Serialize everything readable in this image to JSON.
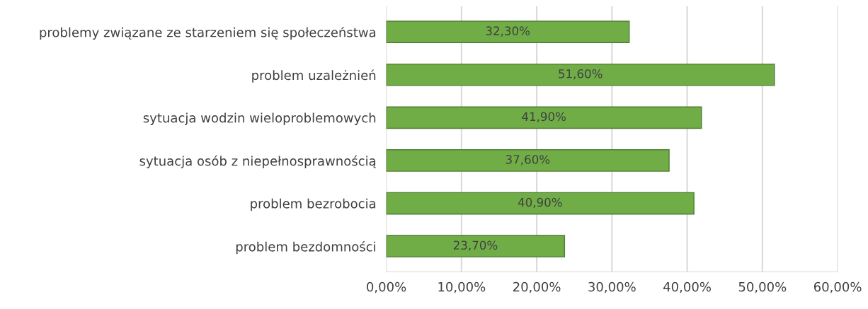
{
  "chart_data": {
    "type": "bar",
    "orientation": "horizontal",
    "categories": [
      "problemy związane ze starzeniem się społeczeństwa",
      "problem uzależnień",
      "sytuacja wodzin wieloproblemowych",
      "sytuacja osób z niepełnosprawnością",
      "problem bezrobocia",
      "problem bezdomności"
    ],
    "values": [
      32.3,
      51.6,
      41.9,
      37.6,
      40.9,
      23.7
    ],
    "value_labels": [
      "32,30%",
      "51,60%",
      "41,90%",
      "37,60%",
      "40,90%",
      "23,70%"
    ],
    "color": "#70ad47",
    "xlim": [
      0,
      60
    ],
    "xticks": [
      {
        "value": 0,
        "label": "0,00%"
      },
      {
        "value": 10,
        "label": "10,00%"
      },
      {
        "value": 20,
        "label": "20,00%"
      },
      {
        "value": 30,
        "label": "30,00%"
      },
      {
        "value": 40,
        "label": "40,00%"
      },
      {
        "value": 50,
        "label": "50,00%"
      },
      {
        "value": 60,
        "label": "60,00%"
      }
    ],
    "grid": "x",
    "legend": false
  }
}
